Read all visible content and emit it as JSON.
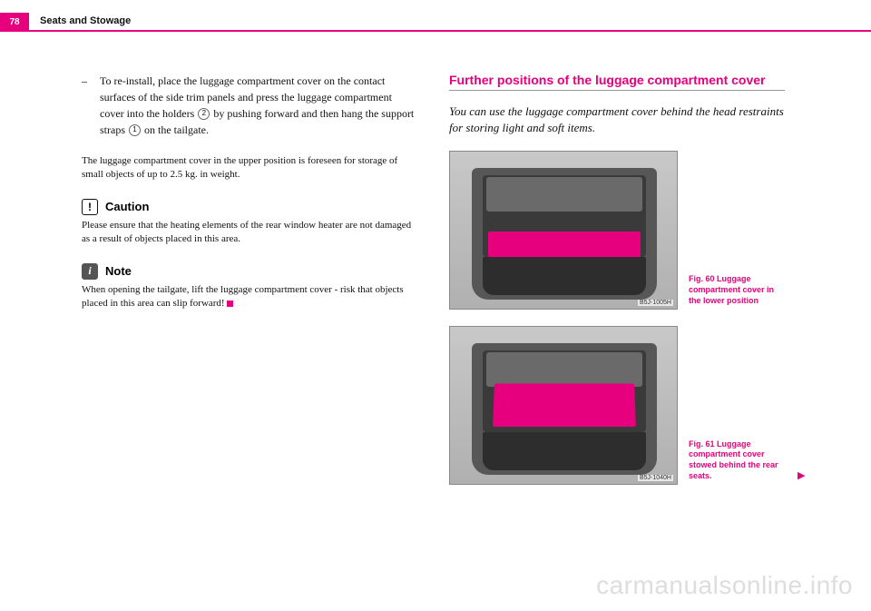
{
  "page_number": "78",
  "header_title": "Seats and Stowage",
  "colors": {
    "accent": "#e6007e",
    "text": "#111"
  },
  "left": {
    "bullet": {
      "text_before": "To re-install, place the luggage compartment cover on the contact surfaces of the side trim panels and press the luggage compartment cover into the holders ",
      "badge1": "2",
      "text_mid": " by pushing forward and then hang the support straps ",
      "badge2": "1",
      "text_after": " on the tailgate."
    },
    "para": "The luggage compartment cover in the upper position is foreseen for storage of small objects of up to 2.5 kg. in weight.",
    "caution_label": "Caution",
    "caution_text": "Please ensure that the heating elements of the rear window heater are not damaged as a result of objects placed in this area.",
    "note_label": "Note",
    "note_text": "When opening the tailgate, lift the luggage compartment cover - risk that objects placed in this area can slip forward!"
  },
  "right": {
    "heading": "Further positions of the luggage compartment cover",
    "subhead": "You can use the luggage compartment cover behind the head restraints for storing light and soft items.",
    "fig1": {
      "code": "B5J-1005H",
      "caption": "Fig. 60  Luggage compartment cover in the lower position"
    },
    "fig2": {
      "code": "B5J-1040H",
      "caption": "Fig. 61  Luggage compartment cover stowed behind the rear seats."
    }
  },
  "watermark": "carmanualsonline.info"
}
